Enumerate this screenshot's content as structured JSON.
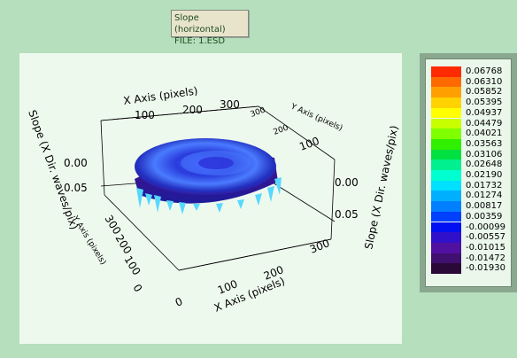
{
  "window": {
    "title_line1": "Slope (horizontal)",
    "title_line2": "FILE: 1.ESD"
  },
  "plot": {
    "x_axis_top_label": "X Axis (pixels)",
    "x_axis_bottom_label": "X Axis (pixels)",
    "y_axis_label": "Y Axis (pixels)",
    "y_axis_back_label": "Y Axis (pixels)",
    "z_axis_left_label": "Slope (X Dir. waves/pix)",
    "z_axis_right_label": "Slope (X Dir. waves/pix)",
    "x_ticks_top": [
      "100",
      "200",
      "300"
    ],
    "x_ticks_bottom": [
      "0",
      "100",
      "200",
      "300"
    ],
    "y_ticks_left": [
      "300",
      "200",
      "100",
      "0"
    ],
    "y_ticks_back": [
      "300",
      "200",
      "100"
    ],
    "z_ticks_left": [
      "0.00",
      "0.05"
    ],
    "z_ticks_right": [
      "0.00",
      "0.05"
    ],
    "surface_colors": {
      "dark": "#3b0f8a",
      "mid": "#2a30d8",
      "light": "#4a7bff",
      "spike": "#56d8ff"
    }
  },
  "legend": {
    "entries": [
      {
        "value": "0.06768",
        "color": "#ff2a00"
      },
      {
        "value": "0.06310",
        "color": "#ff6a00"
      },
      {
        "value": "0.05852",
        "color": "#ffa000"
      },
      {
        "value": "0.05395",
        "color": "#ffd200"
      },
      {
        "value": "0.04937",
        "color": "#ffff00"
      },
      {
        "value": "0.04479",
        "color": "#c8ff00"
      },
      {
        "value": "0.04021",
        "color": "#80ff00"
      },
      {
        "value": "0.03563",
        "color": "#30f000"
      },
      {
        "value": "0.03106",
        "color": "#00e040"
      },
      {
        "value": "0.02648",
        "color": "#00f090"
      },
      {
        "value": "0.02190",
        "color": "#00ffd0"
      },
      {
        "value": "0.01732",
        "color": "#00e0ff"
      },
      {
        "value": "0.01274",
        "color": "#00b0ff"
      },
      {
        "value": "0.00817",
        "color": "#0080ff"
      },
      {
        "value": "0.00359",
        "color": "#0040ff"
      },
      {
        "value": "-0.00099",
        "color": "#0010f0"
      },
      {
        "value": "-0.00557",
        "color": "#3010c8"
      },
      {
        "value": "-0.01015",
        "color": "#5010a0"
      },
      {
        "value": "-0.01472",
        "color": "#401070"
      },
      {
        "value": "-0.01930",
        "color": "#2a0838"
      }
    ]
  }
}
